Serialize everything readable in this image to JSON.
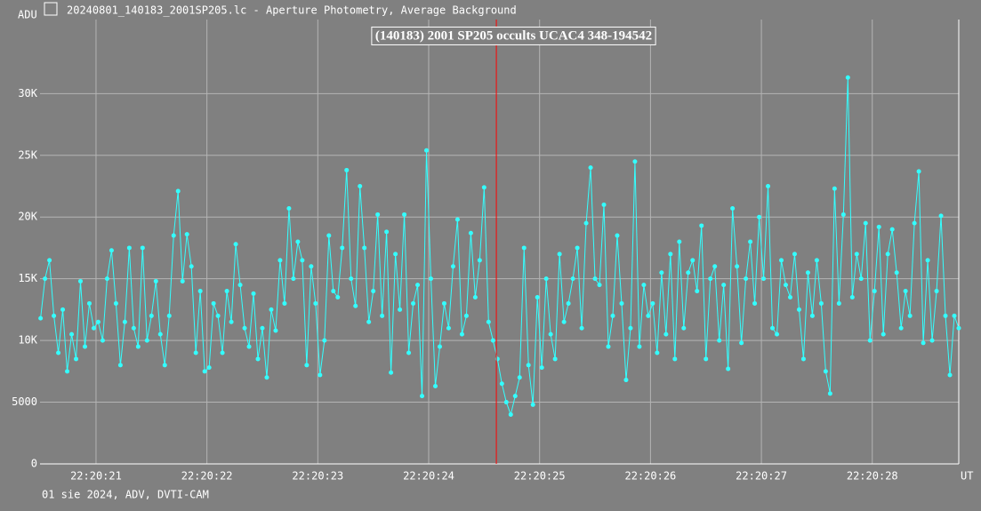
{
  "window_title": "20240801_140183_2001SP205.lc - Aperture Photometry, Average Background",
  "chart_data": {
    "type": "line",
    "title": "(140183) 2001 SP205 occults UCAC4 348-194542",
    "y_label": "ADU",
    "x_label": "UT",
    "footer": "01 sie 2024, ADV, DVTI-CAM",
    "color": "#33ffff",
    "marker_color": "#ff0000",
    "marker_x": 24.61,
    "grid": true,
    "xlim": [
      20.495,
      28.78
    ],
    "ylim": [
      0,
      36000
    ],
    "xticks": [
      {
        "value": 21,
        "label": "22:20:21"
      },
      {
        "value": 22,
        "label": "22:20:22"
      },
      {
        "value": 23,
        "label": "22:20:23"
      },
      {
        "value": 24,
        "label": "22:20:24"
      },
      {
        "value": 25,
        "label": "22:20:25"
      },
      {
        "value": 26,
        "label": "22:20:26"
      },
      {
        "value": 27,
        "label": "22:20:27"
      },
      {
        "value": 28,
        "label": "22:20:28"
      }
    ],
    "yticks": [
      0,
      5000,
      {
        "value": 10000,
        "label": "10K"
      },
      {
        "value": 15000,
        "label": "15K"
      },
      {
        "value": 20000,
        "label": "20K"
      },
      {
        "value": 25000,
        "label": "25K"
      },
      {
        "value": 30000,
        "label": "30K"
      }
    ],
    "x": [
      20.5,
      20.54,
      20.58,
      20.62,
      20.66,
      20.7,
      20.74,
      20.78,
      20.82,
      20.86,
      20.9,
      20.94,
      20.98,
      21.02,
      21.06,
      21.1,
      21.14,
      21.18,
      21.22,
      21.26,
      21.3,
      21.34,
      21.38,
      21.42,
      21.46,
      21.5,
      21.54,
      21.58,
      21.62,
      21.66,
      21.7,
      21.74,
      21.78,
      21.82,
      21.86,
      21.9,
      21.94,
      21.98,
      22.02,
      22.06,
      22.1,
      22.14,
      22.18,
      22.22,
      22.26,
      22.3,
      22.34,
      22.38,
      22.42,
      22.46,
      22.5,
      22.54,
      22.58,
      22.62,
      22.66,
      22.7,
      22.74,
      22.78,
      22.82,
      22.86,
      22.9,
      22.94,
      22.98,
      23.02,
      23.06,
      23.1,
      23.14,
      23.18,
      23.22,
      23.26,
      23.3,
      23.34,
      23.38,
      23.42,
      23.46,
      23.5,
      23.54,
      23.58,
      23.62,
      23.66,
      23.7,
      23.74,
      23.78,
      23.82,
      23.86,
      23.9,
      23.94,
      23.98,
      24.02,
      24.06,
      24.1,
      24.14,
      24.18,
      24.22,
      24.26,
      24.3,
      24.34,
      24.38,
      24.42,
      24.46,
      24.5,
      24.54,
      24.58,
      24.62,
      24.66,
      24.7,
      24.74,
      24.78,
      24.82,
      24.86,
      24.9,
      24.94,
      24.98,
      25.02,
      25.06,
      25.1,
      25.14,
      25.18,
      25.22,
      25.26,
      25.3,
      25.34,
      25.38,
      25.42,
      25.46,
      25.5,
      25.54,
      25.58,
      25.62,
      25.66,
      25.7,
      25.74,
      25.78,
      25.82,
      25.86,
      25.9,
      25.94,
      25.98,
      26.02,
      26.06,
      26.1,
      26.14,
      26.18,
      26.22,
      26.26,
      26.3,
      26.34,
      26.38,
      26.42,
      26.46,
      26.5,
      26.54,
      26.58,
      26.62,
      26.66,
      26.7,
      26.74,
      26.78,
      26.82,
      26.86,
      26.9,
      26.94,
      26.98,
      27.02,
      27.06,
      27.1,
      27.14,
      27.18,
      27.22,
      27.26,
      27.3,
      27.34,
      27.38,
      27.42,
      27.46,
      27.5,
      27.54,
      27.58,
      27.62,
      27.66,
      27.7,
      27.74,
      27.78,
      27.82,
      27.86,
      27.9,
      27.94,
      27.98,
      28.02,
      28.06,
      28.1,
      28.14,
      28.18,
      28.22,
      28.26,
      28.3,
      28.34,
      28.38,
      28.42,
      28.46,
      28.5,
      28.54,
      28.58,
      28.62,
      28.66,
      28.7,
      28.74,
      28.78
    ],
    "values": [
      11800,
      15000,
      16500,
      12000,
      9000,
      12500,
      7500,
      10500,
      8500,
      14800,
      9500,
      13000,
      11000,
      11500,
      10000,
      15000,
      17300,
      13000,
      8000,
      11500,
      17500,
      11000,
      9500,
      17500,
      10000,
      12000,
      14800,
      10500,
      8000,
      12000,
      18500,
      22100,
      14800,
      18600,
      16000,
      9000,
      14000,
      7500,
      7800,
      13000,
      12000,
      9000,
      14000,
      11500,
      17800,
      14500,
      11000,
      9500,
      13800,
      8500,
      11000,
      7000,
      12500,
      10800,
      16500,
      13000,
      20700,
      15000,
      18000,
      16500,
      8000,
      16000,
      13000,
      7200,
      10000,
      18500,
      14000,
      13500,
      17500,
      23800,
      15000,
      12800,
      22500,
      17500,
      11500,
      14000,
      20200,
      12000,
      18800,
      7400,
      17000,
      12500,
      20200,
      9000,
      13000,
      14500,
      5500,
      25400,
      15000,
      6300,
      9500,
      13000,
      11000,
      16000,
      19800,
      10500,
      12000,
      18700,
      13500,
      16500,
      22400,
      11500,
      10000,
      8500,
      6500,
      5000,
      4000,
      5500,
      7000,
      17500,
      8000,
      4800,
      13500,
      7800,
      15000,
      10500,
      8500,
      17000,
      11500,
      13000,
      15000,
      17500,
      11000,
      19500,
      24000,
      15000,
      14500,
      21000,
      9500,
      12000,
      18500,
      13000,
      6800,
      11000,
      24500,
      9500,
      14500,
      12000,
      13000,
      9000,
      15500,
      10500,
      17000,
      8500,
      18000,
      11000,
      15500,
      16500,
      14000,
      19300,
      8500,
      15000,
      16000,
      10000,
      14500,
      7700,
      20700,
      16000,
      9800,
      15000,
      18000,
      13000,
      20000,
      15000,
      22500,
      11000,
      10500,
      16500,
      14500,
      13500,
      17000,
      12500,
      8500,
      15500,
      12000,
      16500,
      13000,
      7500,
      5700,
      22300,
      13000,
      20200,
      31300,
      13500,
      17000,
      15000,
      19500,
      10000,
      14000,
      19200,
      10500,
      17000,
      19000,
      15500,
      11000,
      14000,
      12000,
      19500,
      23700,
      9800,
      16500,
      10000,
      14000,
      20100,
      12000,
      7200,
      12000,
      11000
    ]
  }
}
